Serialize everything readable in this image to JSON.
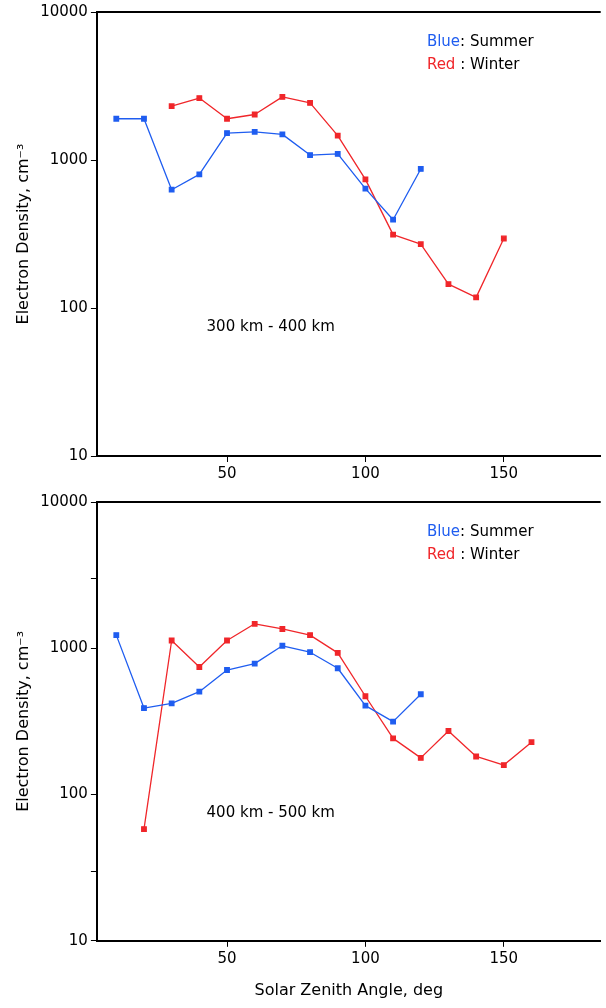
{
  "chart_data": [
    {
      "type": "line",
      "ylabel": "Electron Density, cm⁻³",
      "log": "y",
      "xlim": [
        3,
        185
      ],
      "xticks": [
        50,
        100,
        150
      ],
      "ylim": [
        10,
        10000
      ],
      "yticks": [
        10,
        100,
        1000,
        10000
      ],
      "grid": false,
      "legend": "top right",
      "marker": "square",
      "line_style": "solid",
      "series": [
        {
          "name": "Blue: Summer",
          "color": "#1f5df0",
          "x": [
            10,
            20,
            30,
            40,
            50,
            60,
            70,
            80,
            90,
            100,
            110,
            120
          ],
          "values": [
            1900,
            1900,
            630,
            800,
            1520,
            1550,
            1490,
            1080,
            1100,
            640,
            395,
            870
          ]
        },
        {
          "name": "Red : Winter",
          "color": "#f0262a",
          "x": [
            30,
            40,
            50,
            60,
            70,
            80,
            90,
            100,
            110,
            120,
            130,
            140,
            150
          ],
          "values": [
            2310,
            2620,
            1900,
            2030,
            2670,
            2430,
            1460,
            740,
            313,
            270,
            145,
            118,
            295
          ]
        }
      ],
      "annotations": [
        "300 km - 400 km"
      ]
    },
    {
      "type": "line",
      "xlabel": "Solar Zenith Angle, deg",
      "ylabel": "Electron Density, cm⁻³",
      "log": "y",
      "xlim": [
        3,
        185
      ],
      "xticks": [
        50,
        100,
        150
      ],
      "ylim": [
        10,
        10000
      ],
      "yticks": [
        10,
        {
          "value": 30,
          "label": null
        },
        100,
        1000,
        {
          "value": 3000,
          "label": null
        },
        10000
      ],
      "grid": false,
      "legend": "top right",
      "marker": "square",
      "line_style": "solid",
      "series": [
        {
          "name": "Blue: Summer",
          "color": "#1f5df0",
          "x": [
            10,
            20,
            30,
            40,
            50,
            60,
            70,
            80,
            90,
            100,
            110,
            120
          ],
          "values": [
            1230,
            390,
            420,
            505,
            710,
            785,
            1040,
            940,
            730,
            405,
            315,
            485
          ]
        },
        {
          "name": "Red : Winter",
          "color": "#f0262a",
          "x": [
            20,
            30,
            40,
            50,
            60,
            70,
            80,
            90,
            100,
            110,
            120,
            130,
            140,
            150,
            160
          ],
          "values": [
            58,
            1130,
            745,
            1130,
            1470,
            1355,
            1230,
            930,
            470,
            242,
            178,
            272,
            182,
            159,
            228
          ]
        }
      ],
      "annotations": [
        "400 km - 500 km"
      ]
    }
  ]
}
